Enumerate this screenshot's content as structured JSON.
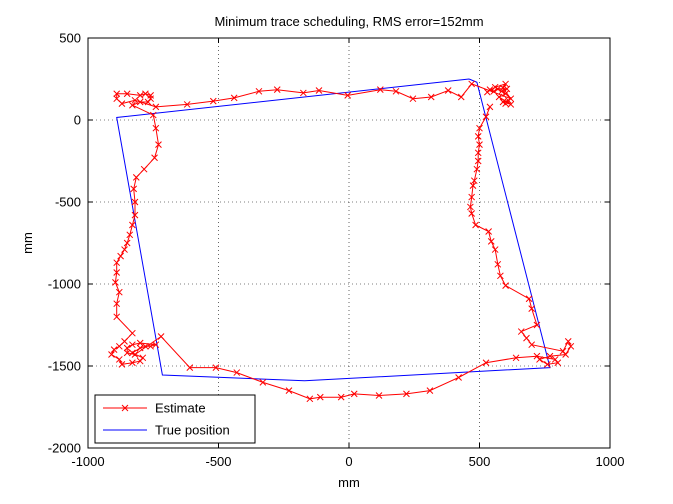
{
  "chart_data": {
    "type": "line",
    "title": "Minimum trace scheduling, RMS error=152mm",
    "xlabel": "mm",
    "ylabel": "mm",
    "xlim": [
      -1000,
      1000
    ],
    "ylim": [
      -2000,
      500
    ],
    "xticks": [
      -1000,
      -500,
      0,
      500,
      1000
    ],
    "yticks": [
      -2000,
      -1500,
      -1000,
      -500,
      0,
      500
    ],
    "grid": true,
    "legend_position": "bottom-left",
    "series": [
      {
        "name": "Estimate",
        "color": "#ff0000",
        "marker": "x",
        "points": [
          [
            600,
            100
          ],
          [
            610,
            120
          ],
          [
            590,
            110
          ],
          [
            620,
            95
          ],
          [
            575,
            140
          ],
          [
            600,
            160
          ],
          [
            585,
            175
          ],
          [
            605,
            190
          ],
          [
            570,
            190
          ],
          [
            555,
            175
          ],
          [
            540,
            185
          ],
          [
            530,
            170
          ],
          [
            560,
            200
          ],
          [
            600,
            220
          ],
          [
            590,
            195
          ],
          [
            620,
            130
          ],
          [
            470,
            220
          ],
          [
            430,
            140
          ],
          [
            380,
            180
          ],
          [
            315,
            140
          ],
          [
            245,
            130
          ],
          [
            180,
            175
          ],
          [
            120,
            185
          ],
          [
            -5,
            150
          ],
          [
            -115,
            180
          ],
          [
            -175,
            165
          ],
          [
            -275,
            185
          ],
          [
            -345,
            175
          ],
          [
            -440,
            135
          ],
          [
            -520,
            115
          ],
          [
            -620,
            95
          ],
          [
            -740,
            80
          ],
          [
            -820,
            120
          ],
          [
            -870,
            100
          ],
          [
            -890,
            130
          ],
          [
            -890,
            160
          ],
          [
            -850,
            160
          ],
          [
            -800,
            150
          ],
          [
            -780,
            160
          ],
          [
            -760,
            150
          ],
          [
            -760,
            130
          ],
          [
            -770,
            110
          ],
          [
            -800,
            110
          ],
          [
            -830,
            90
          ],
          [
            -750,
            30
          ],
          [
            -740,
            -50
          ],
          [
            -730,
            -150
          ],
          [
            -745,
            -230
          ],
          [
            -785,
            -300
          ],
          [
            -815,
            -350
          ],
          [
            -825,
            -420
          ],
          [
            -820,
            -500
          ],
          [
            -820,
            -580
          ],
          [
            -830,
            -640
          ],
          [
            -840,
            -700
          ],
          [
            -850,
            -750
          ],
          [
            -860,
            -790
          ],
          [
            -875,
            -830
          ],
          [
            -890,
            -870
          ],
          [
            -890,
            -930
          ],
          [
            -895,
            -990
          ],
          [
            -880,
            -1050
          ],
          [
            -890,
            -1120
          ],
          [
            -890,
            -1200
          ],
          [
            -830,
            -1300
          ],
          [
            -860,
            -1350
          ],
          [
            -880,
            -1380
          ],
          [
            -900,
            -1400
          ],
          [
            -910,
            -1430
          ],
          [
            -880,
            -1460
          ],
          [
            -870,
            -1490
          ],
          [
            -830,
            -1480
          ],
          [
            -800,
            -1470
          ],
          [
            -790,
            -1450
          ],
          [
            -830,
            -1420
          ],
          [
            -800,
            -1390
          ],
          [
            -780,
            -1380
          ],
          [
            -760,
            -1380
          ],
          [
            -740,
            -1370
          ],
          [
            -800,
            -1360
          ],
          [
            -830,
            -1370
          ],
          [
            -850,
            -1390
          ],
          [
            -850,
            -1420
          ],
          [
            -820,
            -1430
          ],
          [
            -720,
            -1320
          ],
          [
            -610,
            -1510
          ],
          [
            -510,
            -1510
          ],
          [
            -430,
            -1540
          ],
          [
            -330,
            -1600
          ],
          [
            -230,
            -1650
          ],
          [
            -150,
            -1700
          ],
          [
            -110,
            -1690
          ],
          [
            -30,
            -1690
          ],
          [
            20,
            -1670
          ],
          [
            115,
            -1680
          ],
          [
            220,
            -1670
          ],
          [
            310,
            -1650
          ],
          [
            420,
            -1570
          ],
          [
            525,
            -1480
          ],
          [
            640,
            -1450
          ],
          [
            720,
            -1440
          ],
          [
            790,
            -1460
          ],
          [
            800,
            -1480
          ],
          [
            760,
            -1490
          ],
          [
            730,
            -1460
          ],
          [
            770,
            -1440
          ],
          [
            830,
            -1430
          ],
          [
            850,
            -1380
          ],
          [
            840,
            -1350
          ],
          [
            820,
            -1410
          ],
          [
            700,
            -1370
          ],
          [
            680,
            -1330
          ],
          [
            660,
            -1290
          ],
          [
            720,
            -1250
          ],
          [
            700,
            -1150
          ],
          [
            690,
            -1090
          ],
          [
            600,
            -1010
          ],
          [
            580,
            -950
          ],
          [
            570,
            -880
          ],
          [
            560,
            -790
          ],
          [
            545,
            -740
          ],
          [
            535,
            -680
          ],
          [
            485,
            -640
          ],
          [
            470,
            -570
          ],
          [
            465,
            -530
          ],
          [
            470,
            -470
          ],
          [
            475,
            -400
          ],
          [
            480,
            -370
          ],
          [
            490,
            -300
          ],
          [
            495,
            -250
          ],
          [
            495,
            -200
          ],
          [
            500,
            -150
          ],
          [
            495,
            -100
          ],
          [
            500,
            -50
          ],
          [
            525,
            20
          ],
          [
            540,
            80
          ]
        ]
      },
      {
        "name": "True position",
        "color": "#0000ff",
        "marker": "none",
        "points": [
          [
            460,
            250
          ],
          [
            -890,
            15
          ],
          [
            -715,
            -1555
          ],
          [
            -170,
            -1590
          ],
          [
            770,
            -1510
          ],
          [
            490,
            230
          ],
          [
            460,
            250
          ]
        ]
      }
    ]
  }
}
